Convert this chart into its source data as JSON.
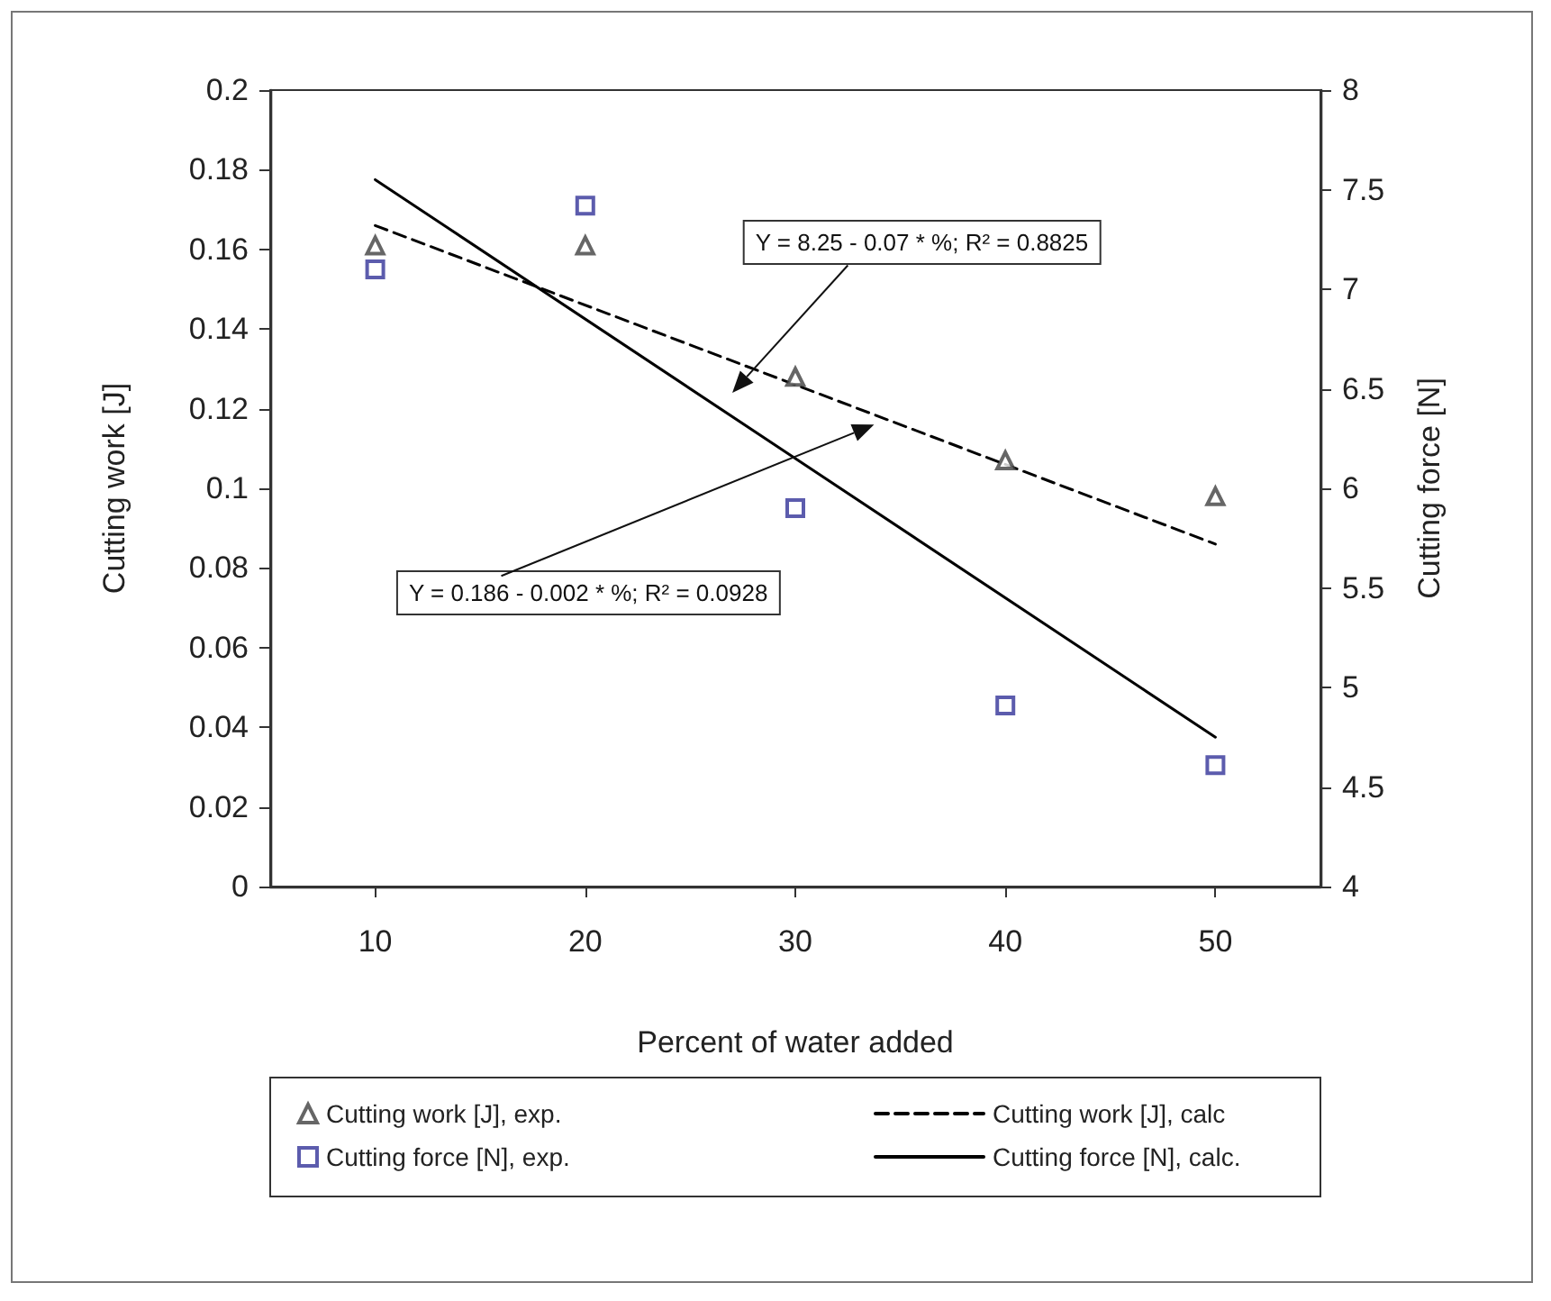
{
  "chart_data": {
    "type": "scatter",
    "xlabel": "Percent of water added",
    "ylabel": "Cutting work [J]",
    "y2label": "Cutting force [N]",
    "xlim": [
      5,
      55
    ],
    "xticks": [
      10,
      20,
      30,
      40,
      50
    ],
    "ylim": [
      0,
      0.2
    ],
    "yticks": [
      0,
      0.02,
      0.04,
      0.06,
      0.08,
      0.1,
      0.12,
      0.14,
      0.16,
      0.18,
      0.2
    ],
    "y2lim": [
      4,
      8
    ],
    "y2ticks": [
      4,
      4.5,
      5,
      5.5,
      6,
      6.5,
      7,
      7.5,
      8
    ],
    "legend": "bottom",
    "annotations": [
      "Y = 8.25 - 0.07 * %; R² = 0.8825",
      "Y = 0.186 - 0.002 * %; R² = 0.0928"
    ],
    "series": [
      {
        "name": "Cutting work [J], exp.",
        "marker": "triangle",
        "color": "#404040",
        "x": [
          10,
          20,
          30,
          40,
          50
        ],
        "values": [
          0.161,
          0.161,
          0.128,
          0.107,
          0.098
        ]
      },
      {
        "name": "Cutting work [J], calc",
        "type": "line",
        "marker": "none",
        "line_style": "dashed",
        "color": "#000000",
        "x": [
          10,
          50
        ],
        "values": [
          0.166,
          0.086
        ]
      },
      {
        "name": "Cutting force [N], exp.",
        "marker": "square",
        "axis": "y2",
        "color": "#333399",
        "x": [
          10,
          20,
          30,
          40,
          50
        ],
        "values": [
          7.1,
          7.42,
          5.9,
          4.91,
          4.61
        ]
      },
      {
        "name": "Cutting force [N], calc.",
        "type": "line",
        "marker": "none",
        "line_style": "solid",
        "axis": "y2",
        "color": "#000000",
        "x": [
          10,
          50
        ],
        "values": [
          7.55,
          4.75
        ]
      }
    ]
  }
}
